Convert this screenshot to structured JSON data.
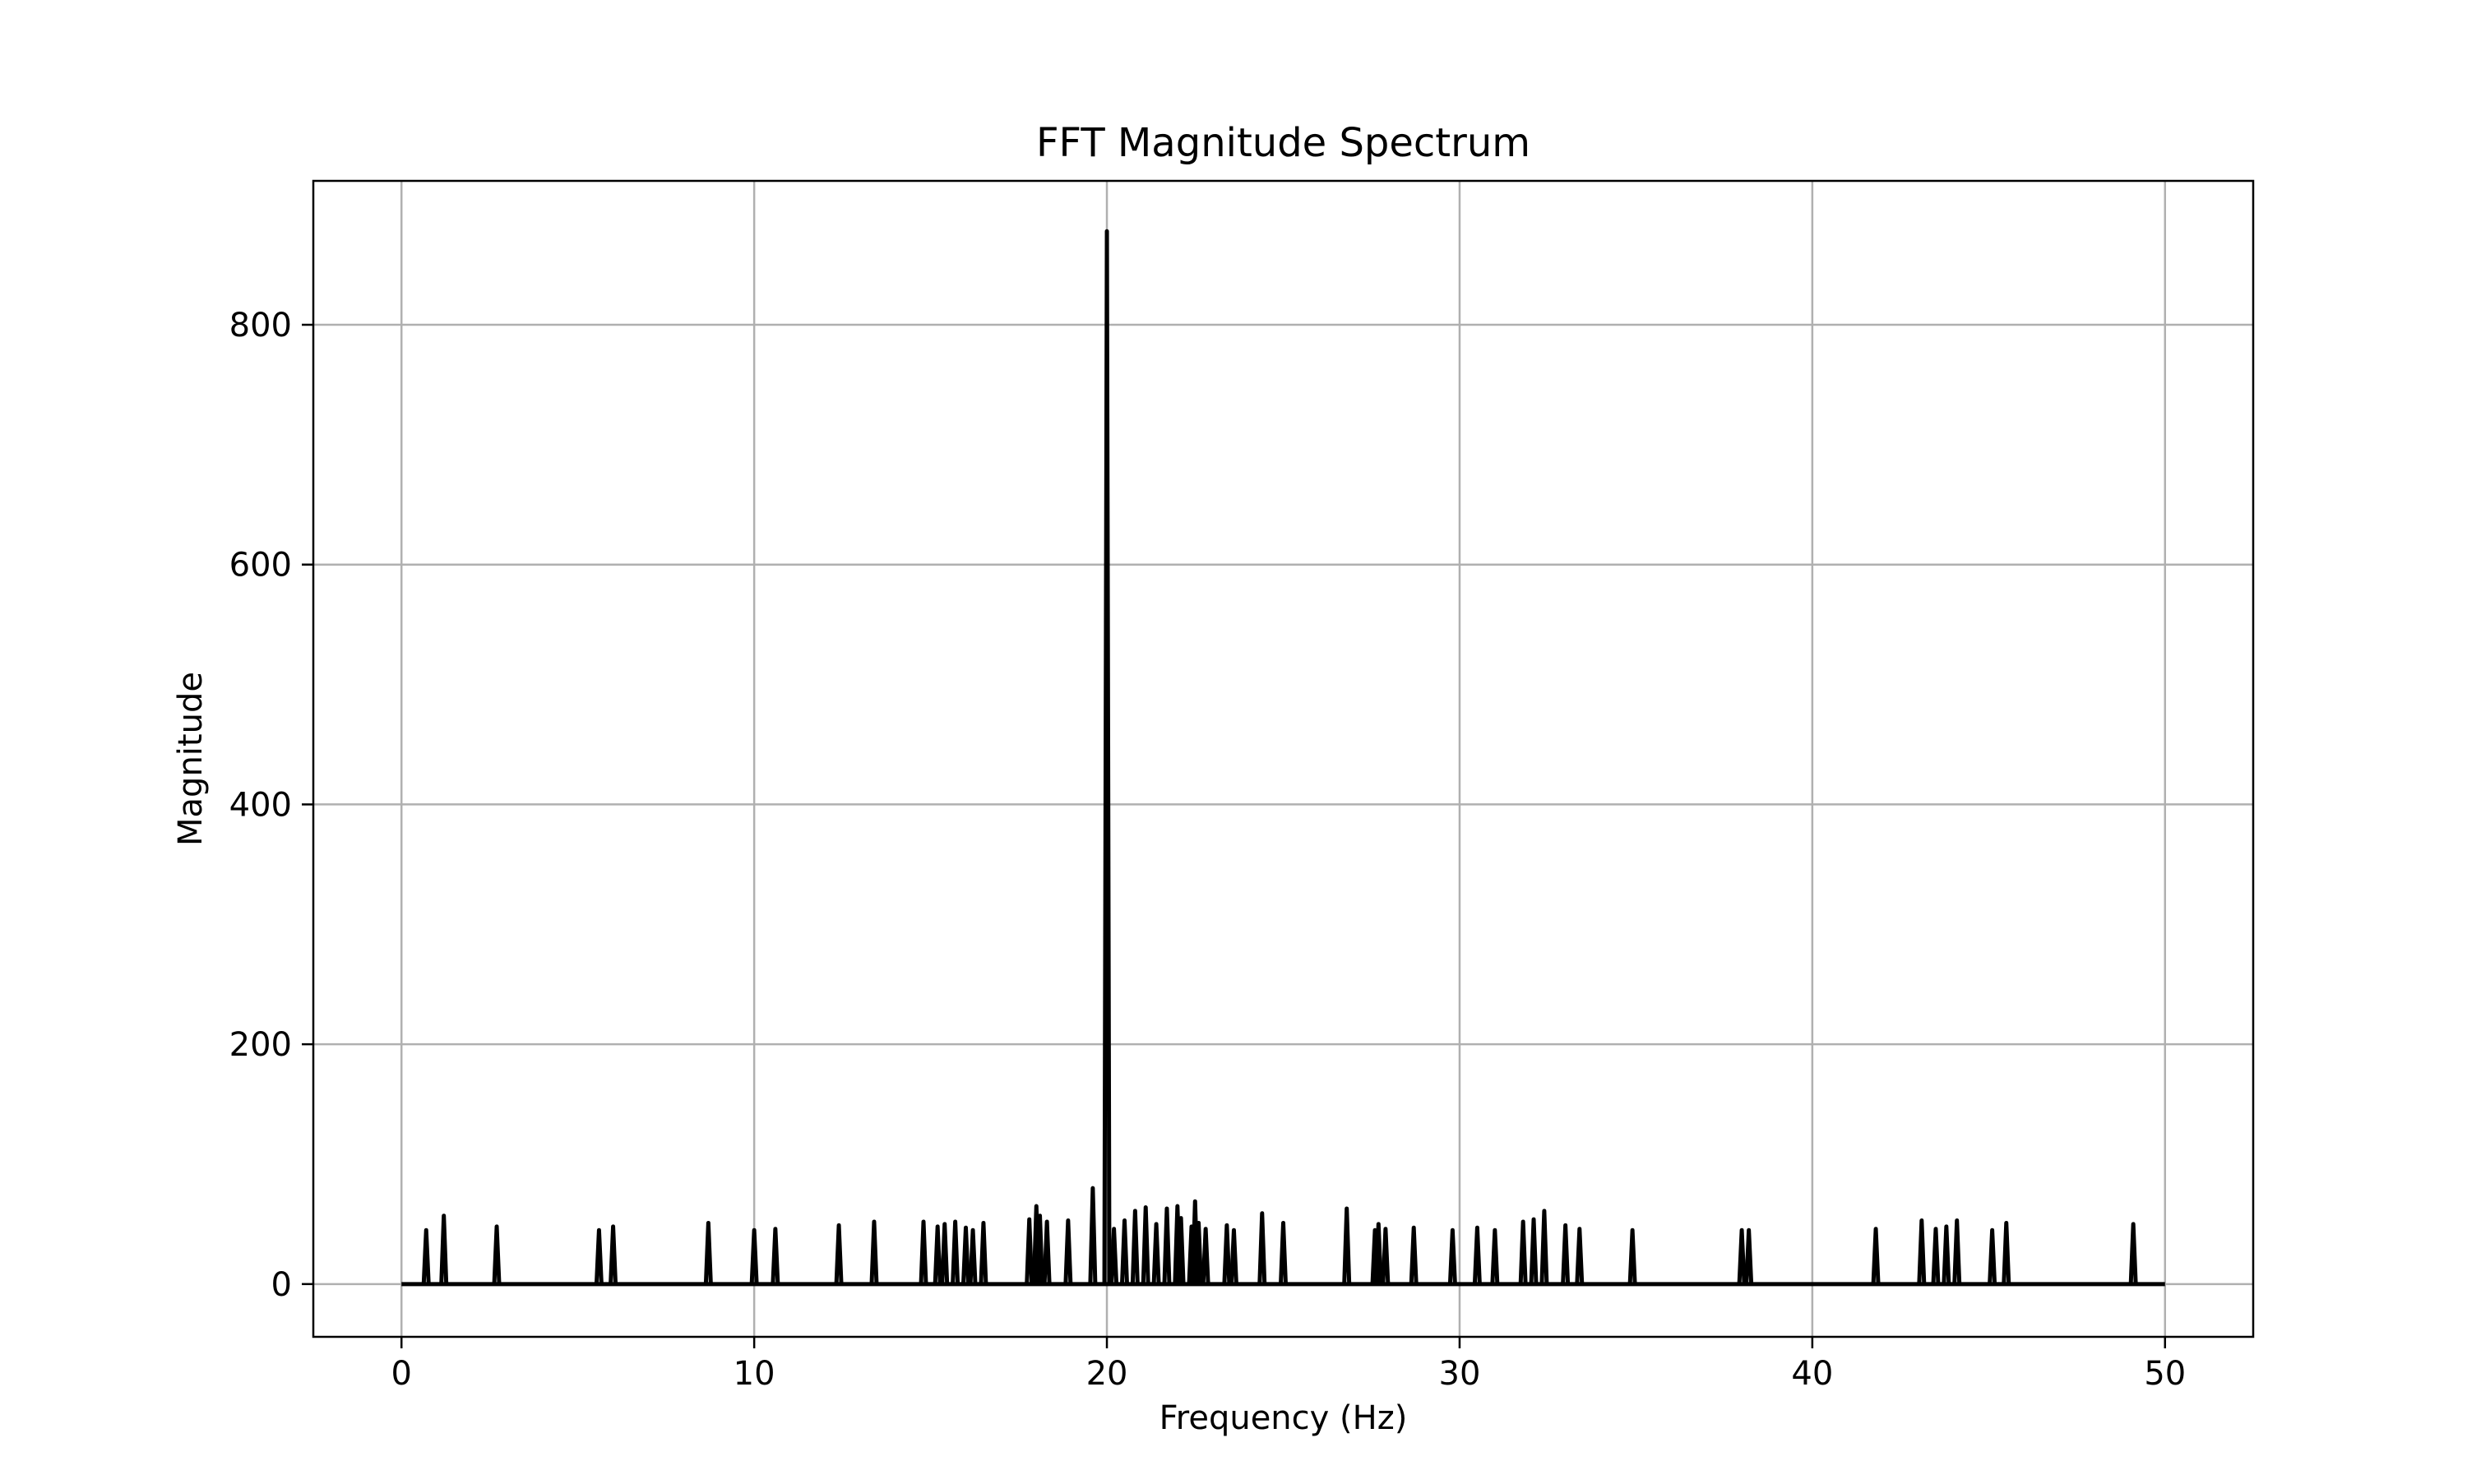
{
  "chart_data": {
    "type": "line",
    "title": "FFT Magnitude Spectrum",
    "xlabel": "Frequency (Hz)",
    "ylabel": "Magnitude",
    "xlim": [
      -2.5,
      52.5
    ],
    "ylim": [
      -44,
      920
    ],
    "xticks": [
      0,
      10,
      20,
      30,
      40,
      50
    ],
    "yticks": [
      0,
      200,
      400,
      600,
      800
    ],
    "grid": true,
    "baseline_range": [
      0,
      50
    ],
    "series": [
      {
        "name": "Magnitude",
        "color": "#000000",
        "peaks": [
          {
            "x": 0.7,
            "y": 45
          },
          {
            "x": 1.2,
            "y": 57
          },
          {
            "x": 2.7,
            "y": 48
          },
          {
            "x": 5.6,
            "y": 45
          },
          {
            "x": 6.0,
            "y": 48
          },
          {
            "x": 8.7,
            "y": 51
          },
          {
            "x": 10.0,
            "y": 45
          },
          {
            "x": 10.6,
            "y": 46
          },
          {
            "x": 12.4,
            "y": 49
          },
          {
            "x": 13.4,
            "y": 52
          },
          {
            "x": 14.8,
            "y": 52
          },
          {
            "x": 15.2,
            "y": 48
          },
          {
            "x": 15.4,
            "y": 50
          },
          {
            "x": 15.7,
            "y": 52
          },
          {
            "x": 16.0,
            "y": 47
          },
          {
            "x": 16.2,
            "y": 45
          },
          {
            "x": 16.5,
            "y": 51
          },
          {
            "x": 17.8,
            "y": 54
          },
          {
            "x": 18.0,
            "y": 65
          },
          {
            "x": 18.1,
            "y": 57
          },
          {
            "x": 18.3,
            "y": 52
          },
          {
            "x": 18.9,
            "y": 53
          },
          {
            "x": 19.6,
            "y": 80
          },
          {
            "x": 20.0,
            "y": 878
          },
          {
            "x": 20.2,
            "y": 46
          },
          {
            "x": 20.5,
            "y": 53
          },
          {
            "x": 20.8,
            "y": 61
          },
          {
            "x": 21.1,
            "y": 64
          },
          {
            "x": 21.4,
            "y": 50
          },
          {
            "x": 21.7,
            "y": 63
          },
          {
            "x": 22.0,
            "y": 65
          },
          {
            "x": 22.1,
            "y": 55
          },
          {
            "x": 22.4,
            "y": 48
          },
          {
            "x": 22.5,
            "y": 69
          },
          {
            "x": 22.6,
            "y": 51
          },
          {
            "x": 22.8,
            "y": 46
          },
          {
            "x": 23.4,
            "y": 49
          },
          {
            "x": 23.6,
            "y": 45
          },
          {
            "x": 24.4,
            "y": 59
          },
          {
            "x": 25.0,
            "y": 51
          },
          {
            "x": 26.8,
            "y": 63
          },
          {
            "x": 27.6,
            "y": 45
          },
          {
            "x": 27.7,
            "y": 50
          },
          {
            "x": 27.9,
            "y": 46
          },
          {
            "x": 28.7,
            "y": 47
          },
          {
            "x": 29.8,
            "y": 45
          },
          {
            "x": 30.5,
            "y": 47
          },
          {
            "x": 31.0,
            "y": 45
          },
          {
            "x": 31.8,
            "y": 52
          },
          {
            "x": 32.1,
            "y": 54
          },
          {
            "x": 32.4,
            "y": 61
          },
          {
            "x": 33.0,
            "y": 49
          },
          {
            "x": 33.4,
            "y": 46
          },
          {
            "x": 34.9,
            "y": 45
          },
          {
            "x": 38.0,
            "y": 45
          },
          {
            "x": 38.2,
            "y": 45
          },
          {
            "x": 41.8,
            "y": 46
          },
          {
            "x": 43.1,
            "y": 53
          },
          {
            "x": 43.5,
            "y": 46
          },
          {
            "x": 43.8,
            "y": 48
          },
          {
            "x": 44.1,
            "y": 53
          },
          {
            "x": 45.1,
            "y": 45
          },
          {
            "x": 45.5,
            "y": 51
          },
          {
            "x": 49.1,
            "y": 50
          }
        ]
      }
    ]
  }
}
